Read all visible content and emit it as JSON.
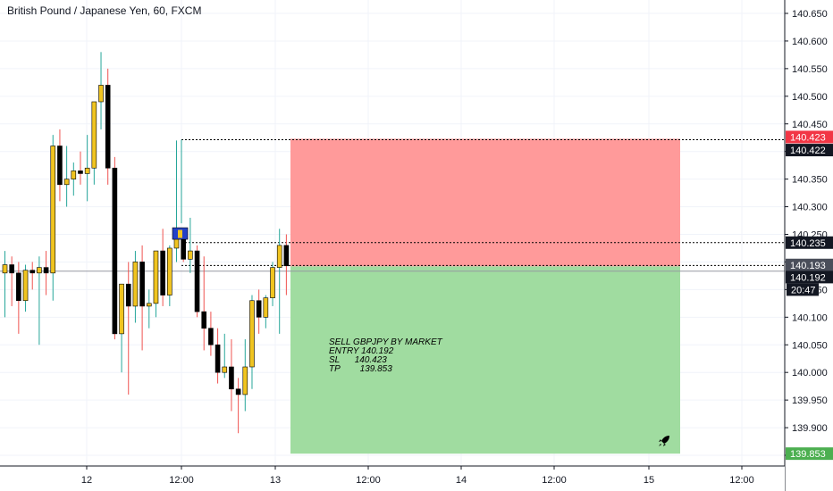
{
  "chart_title": "British Pound / Japanese Yen, 60, FXCM",
  "colors": {
    "bull": "#f0c420",
    "bear": "#000000",
    "stop_zone": "#ff9a9a",
    "target_zone": "#a0dca0",
    "stop_label": "#f23645",
    "target_label": "#4caf50",
    "price_label": "#131722",
    "grid": "#f0f3fa",
    "wick_up": "#26a69a",
    "wick_down": "#ef5350"
  },
  "note": {
    "line1": "SELL GBPJPY BY MARKET",
    "line2": "ENTRY 140.192",
    "line3": "SL      140.423",
    "line4": "TP        139.853"
  },
  "icons": {
    "rocket": "rocket-icon"
  },
  "chart_data": {
    "type": "candlestick",
    "title": "British Pound / Japanese Yen, 60, FXCM",
    "ylim": [
      139.84,
      140.685
    ],
    "y_ticks": [
      "140.650",
      "140.600",
      "140.550",
      "140.500",
      "140.450",
      "140.400",
      "140.350",
      "140.300",
      "140.250",
      "140.200",
      "140.150",
      "140.100",
      "140.050",
      "140.000",
      "139.950",
      "139.900",
      "139.850"
    ],
    "x_ticks": [
      "12",
      "12:00",
      "13",
      "12:00",
      "14",
      "12:00",
      "15",
      "12:00"
    ],
    "price_labels": [
      {
        "text": "140.423",
        "value": 140.423,
        "kind": "stop"
      },
      {
        "text": "140.422",
        "value": 140.422,
        "kind": "dark"
      },
      {
        "text": "140.235",
        "value": 140.235,
        "kind": "dark"
      },
      {
        "text": "140.193",
        "value": 140.193,
        "kind": "dark"
      },
      {
        "text": "140.192",
        "value": 140.192,
        "kind": "dark-below"
      },
      {
        "text": "20:47",
        "value": 140.192,
        "kind": "timer"
      },
      {
        "text": "139.853",
        "value": 139.853,
        "kind": "target"
      }
    ],
    "levels": {
      "entry": 140.192,
      "stop": 140.423,
      "target": 139.853,
      "current": 140.193,
      "mark": 140.235
    },
    "candles": [
      {
        "o": 140.18,
        "h": 140.22,
        "l": 140.1,
        "c": 140.195
      },
      {
        "o": 140.195,
        "h": 140.21,
        "l": 140.12,
        "c": 140.18
      },
      {
        "o": 140.18,
        "h": 140.2,
        "l": 140.07,
        "c": 140.13
      },
      {
        "o": 140.13,
        "h": 140.195,
        "l": 140.11,
        "c": 140.185
      },
      {
        "o": 140.185,
        "h": 140.2,
        "l": 140.15,
        "c": 140.18
      },
      {
        "o": 140.18,
        "h": 140.21,
        "l": 140.05,
        "c": 140.19
      },
      {
        "o": 140.19,
        "h": 140.22,
        "l": 140.14,
        "c": 140.18
      },
      {
        "o": 140.18,
        "h": 140.43,
        "l": 140.13,
        "c": 140.41
      },
      {
        "o": 140.41,
        "h": 140.44,
        "l": 140.31,
        "c": 140.34
      },
      {
        "o": 140.34,
        "h": 140.41,
        "l": 140.3,
        "c": 140.35
      },
      {
        "o": 140.35,
        "h": 140.38,
        "l": 140.32,
        "c": 140.365
      },
      {
        "o": 140.365,
        "h": 140.4,
        "l": 140.34,
        "c": 140.36
      },
      {
        "o": 140.36,
        "h": 140.43,
        "l": 140.31,
        "c": 140.37
      },
      {
        "o": 140.37,
        "h": 140.49,
        "l": 140.34,
        "c": 140.49
      },
      {
        "o": 140.49,
        "h": 140.58,
        "l": 140.44,
        "c": 140.52
      },
      {
        "o": 140.52,
        "h": 140.55,
        "l": 140.34,
        "c": 140.37
      },
      {
        "o": 140.37,
        "h": 140.39,
        "l": 140.06,
        "c": 140.07
      },
      {
        "o": 140.07,
        "h": 140.16,
        "l": 140.0,
        "c": 140.16
      },
      {
        "o": 140.16,
        "h": 140.2,
        "l": 139.96,
        "c": 140.12
      },
      {
        "o": 140.12,
        "h": 140.22,
        "l": 140.09,
        "c": 140.2
      },
      {
        "o": 140.2,
        "h": 140.23,
        "l": 140.04,
        "c": 140.12
      },
      {
        "o": 140.12,
        "h": 140.15,
        "l": 140.08,
        "c": 140.125
      },
      {
        "o": 140.125,
        "h": 140.22,
        "l": 140.1,
        "c": 140.22
      },
      {
        "o": 140.22,
        "h": 140.26,
        "l": 140.12,
        "c": 140.14
      },
      {
        "o": 140.14,
        "h": 140.23,
        "l": 140.12,
        "c": 140.225
      },
      {
        "o": 140.225,
        "h": 140.42,
        "l": 140.2,
        "c": 140.245
      },
      {
        "o": 140.245,
        "h": 140.26,
        "l": 140.2,
        "c": 140.205
      },
      {
        "o": 140.205,
        "h": 140.28,
        "l": 140.18,
        "c": 140.22
      },
      {
        "o": 140.22,
        "h": 140.23,
        "l": 140.1,
        "c": 140.11
      },
      {
        "o": 140.11,
        "h": 140.21,
        "l": 140.04,
        "c": 140.08
      },
      {
        "o": 140.08,
        "h": 140.11,
        "l": 140.03,
        "c": 140.05
      },
      {
        "o": 140.05,
        "h": 140.08,
        "l": 139.98,
        "c": 140.0
      },
      {
        "o": 140.0,
        "h": 140.07,
        "l": 139.99,
        "c": 140.01
      },
      {
        "o": 140.01,
        "h": 140.06,
        "l": 139.93,
        "c": 139.97
      },
      {
        "o": 139.97,
        "h": 139.99,
        "l": 139.89,
        "c": 139.96
      },
      {
        "o": 139.96,
        "h": 140.06,
        "l": 139.93,
        "c": 140.01
      },
      {
        "o": 140.01,
        "h": 140.14,
        "l": 139.97,
        "c": 140.13
      },
      {
        "o": 140.13,
        "h": 140.15,
        "l": 140.07,
        "c": 140.1
      },
      {
        "o": 140.1,
        "h": 140.14,
        "l": 140.08,
        "c": 140.135
      },
      {
        "o": 140.135,
        "h": 140.2,
        "l": 140.12,
        "c": 140.19
      },
      {
        "o": 140.19,
        "h": 140.26,
        "l": 140.07,
        "c": 140.23
      },
      {
        "o": 140.23,
        "h": 140.25,
        "l": 140.14,
        "c": 140.193
      }
    ]
  }
}
